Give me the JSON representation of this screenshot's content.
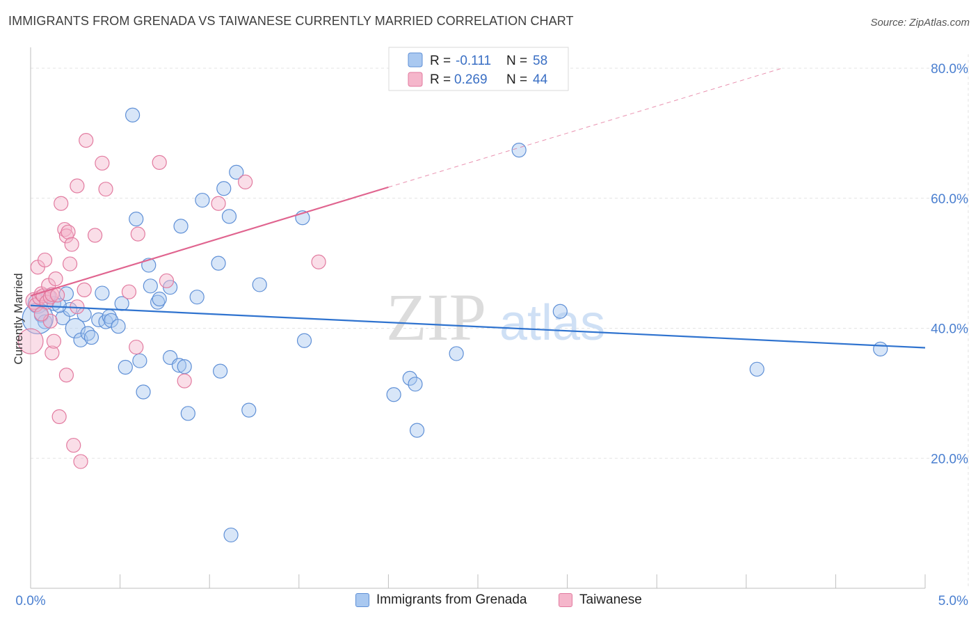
{
  "title": "IMMIGRANTS FROM GRENADA VS TAIWANESE CURRENTLY MARRIED CORRELATION CHART",
  "source": "Source: ZipAtlas.com",
  "watermark": {
    "zip": "ZIP",
    "atlas": "atlas"
  },
  "colors": {
    "blue_fill": "#a9c8f0",
    "blue_stroke": "#5e8fd6",
    "blue_line": "#2f73cf",
    "pink_fill": "#f5b6cb",
    "pink_stroke": "#e27a9f",
    "pink_line": "#e0648f",
    "grid": "#e3e3e3",
    "tick_label": "#4a7fd0"
  },
  "legend": {
    "rows": [
      {
        "r_label": "R =",
        "r_value": "-0.111",
        "n_label": "N =",
        "n_value": "58"
      },
      {
        "r_label": "R =",
        "r_value": "0.269",
        "n_label": "N =",
        "n_value": "44"
      }
    ]
  },
  "chart_data": {
    "type": "scatter",
    "title": "IMMIGRANTS FROM GRENADA VS TAIWANESE CURRENTLY MARRIED CORRELATION CHART",
    "xlabel": "",
    "ylabel": "Currently Married",
    "xlim": [
      0,
      5.0
    ],
    "ylim": [
      0,
      80
    ],
    "x_tick_labels": [
      "0.0%",
      "5.0%"
    ],
    "y_ticks": [
      20,
      40,
      60,
      80
    ],
    "y_tick_labels": [
      "20.0%",
      "40.0%",
      "60.0%",
      "80.0%"
    ],
    "grid": true,
    "legend_position": "top-center",
    "series": [
      {
        "name": "Immigrants from Grenada",
        "color": "#a9c8f0",
        "r": -0.111,
        "n": 58,
        "trend": {
          "x": [
            0.0,
            5.0
          ],
          "y": [
            43.5,
            37.0
          ],
          "dashed_from": null
        },
        "points": [
          {
            "x": 0.04,
            "y": 43.8,
            "s": 14
          },
          {
            "x": 0.06,
            "y": 42.0,
            "s": 10
          },
          {
            "x": 0.08,
            "y": 41.0,
            "s": 10
          },
          {
            "x": 0.04,
            "y": 41.5,
            "s": 22
          },
          {
            "x": 0.13,
            "y": 43.8,
            "s": 10
          },
          {
            "x": 0.18,
            "y": 41.6,
            "s": 10
          },
          {
            "x": 0.2,
            "y": 45.3,
            "s": 10
          },
          {
            "x": 0.22,
            "y": 42.9,
            "s": 10
          },
          {
            "x": 0.25,
            "y": 40.0,
            "s": 14
          },
          {
            "x": 0.28,
            "y": 38.2,
            "s": 10
          },
          {
            "x": 0.3,
            "y": 42.1,
            "s": 10
          },
          {
            "x": 0.32,
            "y": 39.2,
            "s": 10
          },
          {
            "x": 0.34,
            "y": 38.6,
            "s": 10
          },
          {
            "x": 0.38,
            "y": 41.3,
            "s": 10
          },
          {
            "x": 0.4,
            "y": 45.4,
            "s": 10
          },
          {
            "x": 0.42,
            "y": 41.0,
            "s": 10
          },
          {
            "x": 0.44,
            "y": 41.8,
            "s": 10
          },
          {
            "x": 0.45,
            "y": 41.2,
            "s": 10
          },
          {
            "x": 0.49,
            "y": 40.3,
            "s": 10
          },
          {
            "x": 0.51,
            "y": 43.8,
            "s": 10
          },
          {
            "x": 0.53,
            "y": 34.0,
            "s": 10
          },
          {
            "x": 0.57,
            "y": 72.8,
            "s": 10
          },
          {
            "x": 0.59,
            "y": 56.8,
            "s": 10
          },
          {
            "x": 0.61,
            "y": 35.0,
            "s": 10
          },
          {
            "x": 0.63,
            "y": 30.2,
            "s": 10
          },
          {
            "x": 0.66,
            "y": 49.7,
            "s": 10
          },
          {
            "x": 0.67,
            "y": 46.5,
            "s": 10
          },
          {
            "x": 0.71,
            "y": 44.0,
            "s": 10
          },
          {
            "x": 0.72,
            "y": 44.5,
            "s": 10
          },
          {
            "x": 0.78,
            "y": 46.3,
            "s": 10
          },
          {
            "x": 0.78,
            "y": 35.5,
            "s": 10
          },
          {
            "x": 0.83,
            "y": 34.3,
            "s": 10
          },
          {
            "x": 0.84,
            "y": 55.7,
            "s": 10
          },
          {
            "x": 0.86,
            "y": 34.1,
            "s": 10
          },
          {
            "x": 0.88,
            "y": 26.9,
            "s": 10
          },
          {
            "x": 0.93,
            "y": 44.8,
            "s": 10
          },
          {
            "x": 0.96,
            "y": 59.7,
            "s": 10
          },
          {
            "x": 1.05,
            "y": 50.0,
            "s": 10
          },
          {
            "x": 1.06,
            "y": 33.4,
            "s": 10
          },
          {
            "x": 1.08,
            "y": 61.5,
            "s": 10
          },
          {
            "x": 1.11,
            "y": 57.2,
            "s": 10
          },
          {
            "x": 1.12,
            "y": 8.2,
            "s": 10
          },
          {
            "x": 1.15,
            "y": 64.0,
            "s": 10
          },
          {
            "x": 1.22,
            "y": 27.4,
            "s": 10
          },
          {
            "x": 1.28,
            "y": 46.7,
            "s": 10
          },
          {
            "x": 1.52,
            "y": 57.0,
            "s": 10
          },
          {
            "x": 1.53,
            "y": 38.1,
            "s": 10
          },
          {
            "x": 2.03,
            "y": 29.8,
            "s": 10
          },
          {
            "x": 2.12,
            "y": 32.3,
            "s": 10
          },
          {
            "x": 2.15,
            "y": 31.4,
            "s": 10
          },
          {
            "x": 2.16,
            "y": 24.3,
            "s": 10
          },
          {
            "x": 2.38,
            "y": 36.1,
            "s": 10
          },
          {
            "x": 2.73,
            "y": 67.4,
            "s": 10
          },
          {
            "x": 2.96,
            "y": 42.6,
            "s": 10
          },
          {
            "x": 4.06,
            "y": 33.7,
            "s": 10
          },
          {
            "x": 4.75,
            "y": 36.8,
            "s": 10
          },
          {
            "x": 0.16,
            "y": 43.5,
            "s": 10
          },
          {
            "x": 0.1,
            "y": 45.0,
            "s": 10
          }
        ]
      },
      {
        "name": "Taiwanese",
        "color": "#f5b6cb",
        "r": 0.269,
        "n": 44,
        "trend": {
          "x": [
            0.0,
            2.0
          ],
          "y": [
            45.0,
            61.7
          ],
          "dashed_to": {
            "x": 4.2,
            "y": 80.0
          }
        },
        "points": [
          {
            "x": 0.0,
            "y": 38.0,
            "s": 18
          },
          {
            "x": 0.02,
            "y": 44.2,
            "s": 12
          },
          {
            "x": 0.03,
            "y": 43.6,
            "s": 10
          },
          {
            "x": 0.04,
            "y": 49.4,
            "s": 10
          },
          {
            "x": 0.05,
            "y": 44.7,
            "s": 10
          },
          {
            "x": 0.06,
            "y": 45.3,
            "s": 10
          },
          {
            "x": 0.07,
            "y": 45.0,
            "s": 10
          },
          {
            "x": 0.08,
            "y": 50.5,
            "s": 10
          },
          {
            "x": 0.09,
            "y": 44.0,
            "s": 10
          },
          {
            "x": 0.1,
            "y": 46.6,
            "s": 10
          },
          {
            "x": 0.11,
            "y": 44.8,
            "s": 10
          },
          {
            "x": 0.11,
            "y": 41.1,
            "s": 10
          },
          {
            "x": 0.12,
            "y": 45.2,
            "s": 10
          },
          {
            "x": 0.12,
            "y": 36.2,
            "s": 10
          },
          {
            "x": 0.13,
            "y": 38.0,
            "s": 10
          },
          {
            "x": 0.14,
            "y": 47.6,
            "s": 10
          },
          {
            "x": 0.15,
            "y": 45.1,
            "s": 10
          },
          {
            "x": 0.16,
            "y": 26.4,
            "s": 10
          },
          {
            "x": 0.17,
            "y": 59.2,
            "s": 10
          },
          {
            "x": 0.19,
            "y": 55.2,
            "s": 10
          },
          {
            "x": 0.2,
            "y": 54.2,
            "s": 10
          },
          {
            "x": 0.2,
            "y": 32.8,
            "s": 10
          },
          {
            "x": 0.21,
            "y": 54.8,
            "s": 10
          },
          {
            "x": 0.22,
            "y": 49.9,
            "s": 10
          },
          {
            "x": 0.23,
            "y": 52.9,
            "s": 10
          },
          {
            "x": 0.24,
            "y": 22.0,
            "s": 10
          },
          {
            "x": 0.26,
            "y": 43.3,
            "s": 10
          },
          {
            "x": 0.26,
            "y": 61.9,
            "s": 10
          },
          {
            "x": 0.28,
            "y": 19.5,
            "s": 10
          },
          {
            "x": 0.3,
            "y": 45.9,
            "s": 10
          },
          {
            "x": 0.31,
            "y": 68.9,
            "s": 10
          },
          {
            "x": 0.36,
            "y": 54.3,
            "s": 10
          },
          {
            "x": 0.4,
            "y": 65.4,
            "s": 10
          },
          {
            "x": 0.42,
            "y": 61.4,
            "s": 10
          },
          {
            "x": 0.55,
            "y": 45.6,
            "s": 10
          },
          {
            "x": 0.59,
            "y": 37.1,
            "s": 10
          },
          {
            "x": 0.6,
            "y": 54.5,
            "s": 10
          },
          {
            "x": 0.72,
            "y": 65.5,
            "s": 10
          },
          {
            "x": 0.76,
            "y": 47.3,
            "s": 10
          },
          {
            "x": 0.86,
            "y": 31.9,
            "s": 10
          },
          {
            "x": 1.05,
            "y": 59.2,
            "s": 10
          },
          {
            "x": 1.2,
            "y": 62.5,
            "s": 10
          },
          {
            "x": 1.61,
            "y": 50.2,
            "s": 10
          },
          {
            "x": 0.06,
            "y": 42.2,
            "s": 10
          }
        ]
      }
    ]
  }
}
